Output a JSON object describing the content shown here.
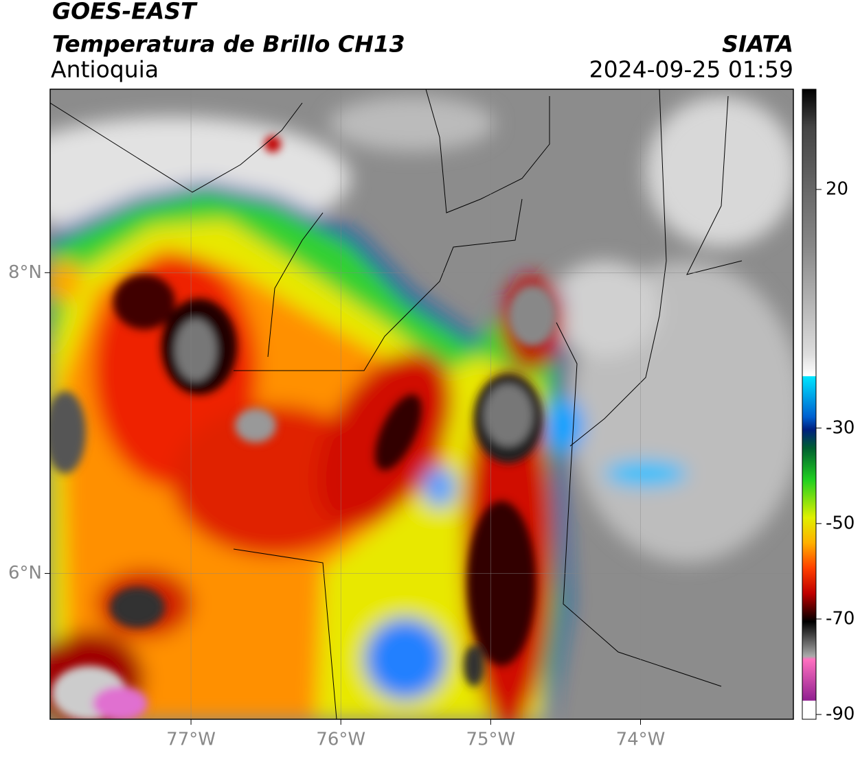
{
  "header": {
    "satellite": "GOES-EAST",
    "product": "Temperatura de Brillo CH13",
    "region": "Antioquia",
    "source": "SIATA",
    "datetime": "2024-09-25 01:59"
  },
  "map": {
    "xlim": [
      -77.94,
      -72.98
    ],
    "ylim": [
      5.03,
      9.22
    ],
    "xticks": [
      {
        "value": -77,
        "label": "77°W"
      },
      {
        "value": -76,
        "label": "76°W"
      },
      {
        "value": -75,
        "label": "75°W"
      },
      {
        "value": -74,
        "label": "74°W"
      }
    ],
    "yticks": [
      {
        "value": 8,
        "label": "8°N"
      },
      {
        "value": 6,
        "label": "6°N"
      }
    ],
    "grid": true
  },
  "colorbar": {
    "clim": [
      -91,
      41
    ],
    "ticks": [
      20,
      -30,
      -50,
      -70,
      -90
    ]
  }
}
